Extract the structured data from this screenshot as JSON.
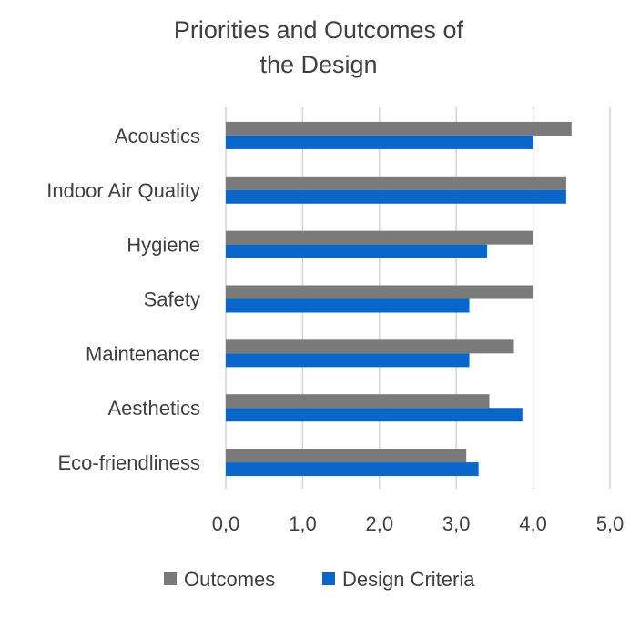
{
  "chart_data": {
    "type": "bar",
    "orientation": "horizontal",
    "title_lines": [
      "Priorities and Outcomes of",
      "the Design"
    ],
    "categories": [
      "Acoustics",
      "Indoor Air Quality",
      "Hygiene",
      "Safety",
      "Maintenance",
      "Aesthetics",
      "Eco-friendliness"
    ],
    "series": [
      {
        "name": "Outcomes",
        "color": "#7a7a7a",
        "values": [
          4.5,
          4.43,
          4.0,
          4.0,
          3.75,
          3.43,
          3.13
        ]
      },
      {
        "name": "Design Criteria",
        "color": "#0a66c8",
        "values": [
          4.0,
          4.43,
          3.4,
          3.17,
          3.17,
          3.86,
          3.29
        ]
      }
    ],
    "xlim": [
      0,
      5
    ],
    "x_ticks": [
      "0,0",
      "1,0",
      "2,0",
      "3,0",
      "4,0",
      "5,0"
    ],
    "grid": "vertical",
    "legend_position": "bottom"
  }
}
